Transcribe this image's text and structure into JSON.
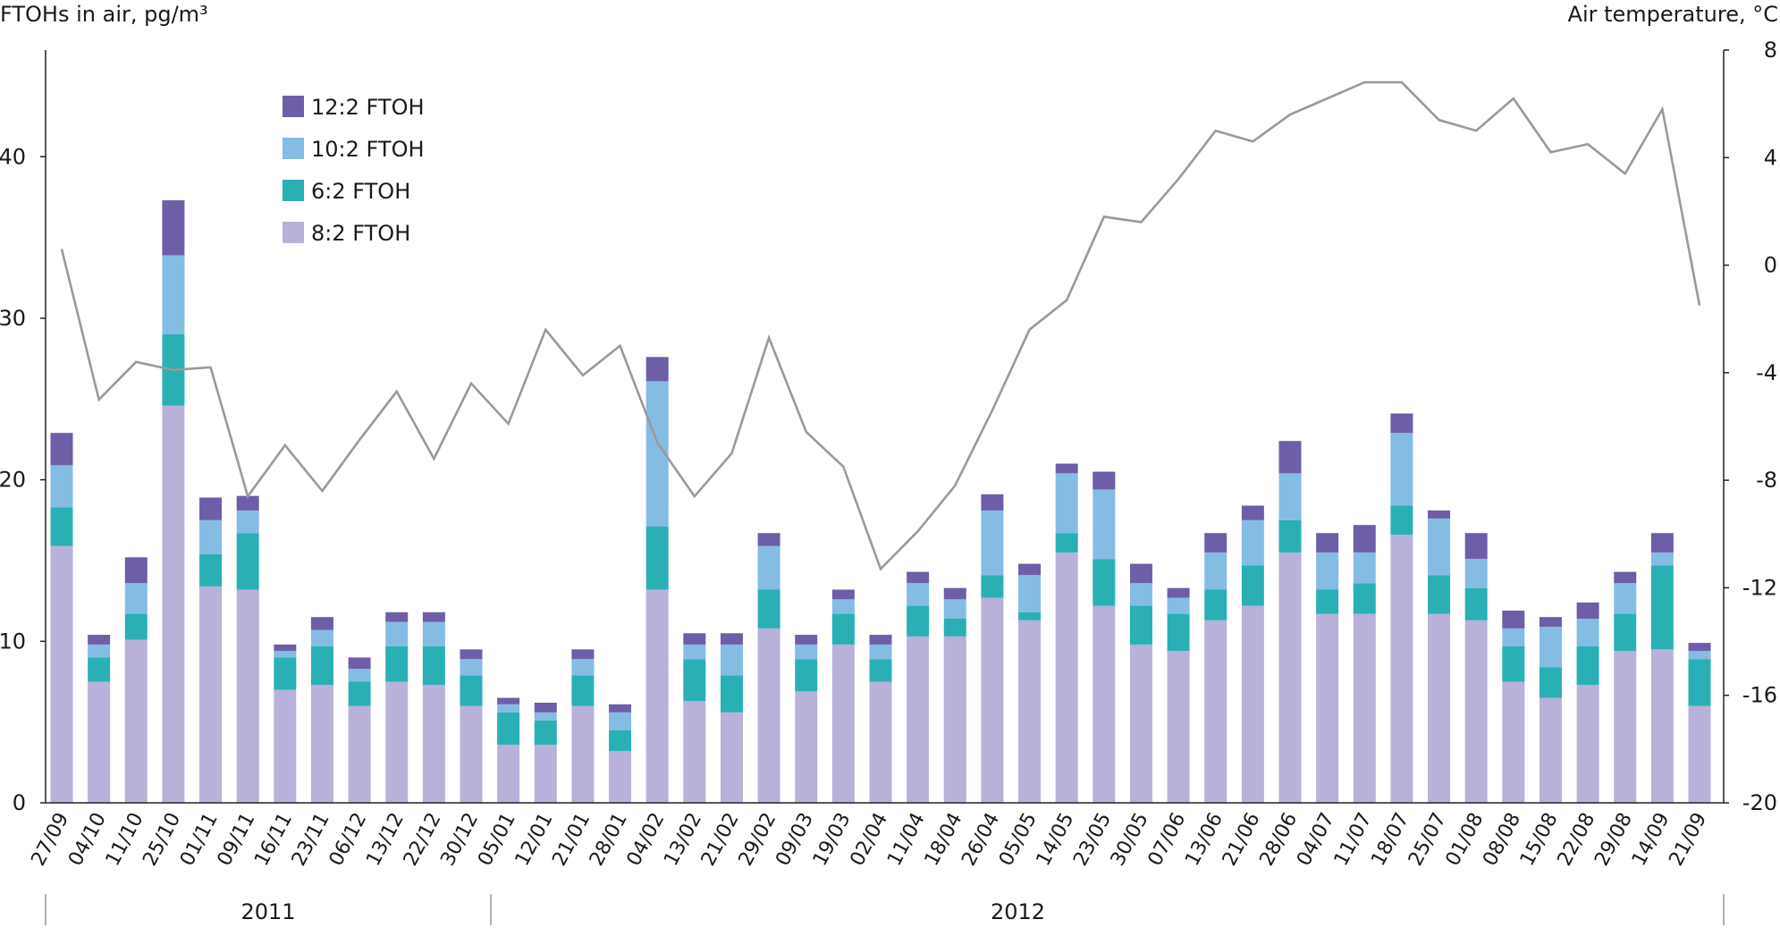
{
  "chart_data": {
    "type": "bar",
    "stacked": true,
    "ylabel_left": "FTOHs in air, pg/m³",
    "ylabel_right": "Air temperature, °C",
    "ylim_left": [
      0,
      46.6
    ],
    "yticks_left": [
      0,
      10,
      20,
      30,
      40
    ],
    "ylim_right": [
      -20,
      8
    ],
    "yticks_right": [
      -20,
      -16,
      -12,
      -8,
      -4,
      0,
      4,
      8
    ],
    "grid": false,
    "legend_position": "top-left",
    "categories": [
      "27/09",
      "04/10",
      "11/10",
      "25/10",
      "01/11",
      "09/11",
      "16/11",
      "23/11",
      "06/12",
      "13/12",
      "22/12",
      "30/12",
      "05/01",
      "12/01",
      "21/01",
      "28/01",
      "04/02",
      "13/02",
      "21/02",
      "29/02",
      "09/03",
      "19/03",
      "02/04",
      "11/04",
      "18/04",
      "26/04",
      "05/05",
      "14/05",
      "23/05",
      "30/05",
      "07/06",
      "13/06",
      "21/06",
      "28/06",
      "04/07",
      "11/07",
      "18/07",
      "25/07",
      "01/08",
      "08/08",
      "15/08",
      "22/08",
      "29/08",
      "14/09",
      "21/09"
    ],
    "year_groups": [
      {
        "label": "2011",
        "start": 0,
        "end": 11
      },
      {
        "label": "2012",
        "start": 12,
        "end": 44
      }
    ],
    "series": [
      {
        "name": "8:2 FTOH",
        "color": "#b8b1d9",
        "values": [
          15.9,
          7.5,
          10.1,
          24.6,
          13.4,
          13.2,
          7.0,
          7.3,
          6.0,
          7.5,
          7.3,
          6.0,
          3.6,
          3.6,
          6.0,
          3.2,
          13.2,
          6.3,
          5.6,
          10.8,
          6.9,
          9.8,
          7.5,
          10.3,
          10.3,
          12.7,
          11.3,
          15.5,
          12.2,
          9.8,
          9.4,
          11.3,
          12.2,
          15.5,
          11.7,
          11.7,
          16.6,
          11.7,
          11.3,
          7.5,
          6.5,
          7.3,
          9.4,
          9.5,
          6.0
        ]
      },
      {
        "name": "6:2 FTOH",
        "color": "#2aafb5",
        "values": [
          2.4,
          1.5,
          1.6,
          4.4,
          2.0,
          3.5,
          2.0,
          2.4,
          1.5,
          2.2,
          2.4,
          1.9,
          2.0,
          1.5,
          1.9,
          1.3,
          3.9,
          2.6,
          2.3,
          2.4,
          2.0,
          1.9,
          1.4,
          1.9,
          1.1,
          1.4,
          0.5,
          1.2,
          2.9,
          2.4,
          2.3,
          1.9,
          2.5,
          2.0,
          1.5,
          1.9,
          1.8,
          2.4,
          2.0,
          2.2,
          1.9,
          2.4,
          2.3,
          5.2,
          2.9
        ]
      },
      {
        "name": "10:2 FTOH",
        "color": "#85bce3",
        "values": [
          2.6,
          0.8,
          1.9,
          4.9,
          2.1,
          1.4,
          0.4,
          1.0,
          0.8,
          1.5,
          1.5,
          1.0,
          0.5,
          0.5,
          1.0,
          1.1,
          9.0,
          0.9,
          1.9,
          2.7,
          0.9,
          0.9,
          0.9,
          1.4,
          1.2,
          4.0,
          2.3,
          3.7,
          4.3,
          1.4,
          1.0,
          2.3,
          2.8,
          2.9,
          2.3,
          1.9,
          4.5,
          3.5,
          1.8,
          1.1,
          2.5,
          1.7,
          1.9,
          0.8,
          0.5
        ]
      },
      {
        "name": "12:2 FTOH",
        "color": "#6e5ea8",
        "values": [
          2.0,
          0.6,
          1.6,
          3.4,
          1.4,
          0.9,
          0.4,
          0.8,
          0.7,
          0.6,
          0.6,
          0.6,
          0.4,
          0.6,
          0.6,
          0.5,
          1.5,
          0.7,
          0.7,
          0.8,
          0.6,
          0.6,
          0.6,
          0.7,
          0.7,
          1.0,
          0.7,
          0.6,
          1.1,
          1.2,
          0.6,
          1.2,
          0.9,
          2.0,
          1.2,
          1.7,
          1.2,
          0.5,
          1.6,
          1.1,
          0.6,
          1.0,
          0.7,
          1.2,
          0.5
        ]
      }
    ],
    "legend_order": [
      "12:2 FTOH",
      "10:2 FTOH",
      "6:2 FTOH",
      "8:2 FTOH"
    ],
    "line": {
      "name": "Air temperature",
      "axis": "right",
      "color": "#9a9a9a",
      "values": [
        0.6,
        -5.0,
        -3.6,
        -3.9,
        -3.8,
        -8.6,
        -6.7,
        -8.4,
        -6.5,
        -4.7,
        -7.2,
        -4.4,
        -5.9,
        -2.4,
        -4.1,
        -3.0,
        -6.6,
        -8.6,
        -7.0,
        -2.7,
        -6.2,
        -7.5,
        -11.3,
        -9.9,
        -8.2,
        -5.4,
        -2.4,
        -1.3,
        1.8,
        1.6,
        3.2,
        5.0,
        4.6,
        5.6,
        6.2,
        6.8,
        6.8,
        5.4,
        5.0,
        6.2,
        4.2,
        4.5,
        3.4,
        5.8,
        -1.5
      ]
    }
  }
}
